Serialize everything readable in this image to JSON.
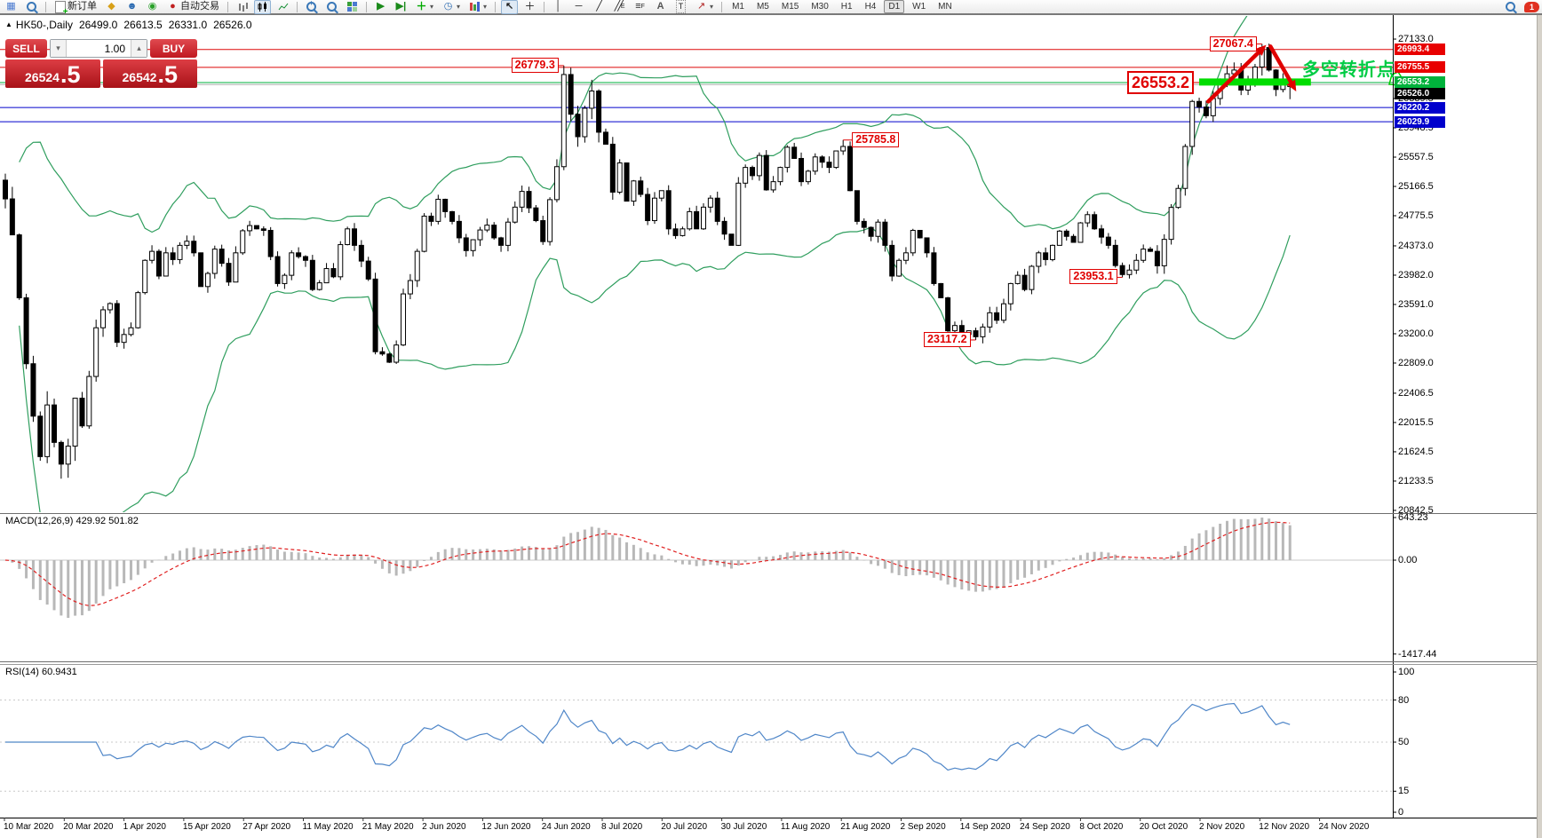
{
  "toolbar": {
    "items": [
      {
        "name": "new-chart",
        "icon": "chart-window"
      },
      {
        "name": "profiles",
        "icon": "chart-magnifier"
      },
      {
        "sep": true
      },
      {
        "name": "new-order",
        "icon": "doc-plus",
        "label": "新订单"
      },
      {
        "name": "metaeditor",
        "icon": "diamond"
      },
      {
        "name": "terminal",
        "icon": "person"
      },
      {
        "name": "signals",
        "icon": "signal"
      },
      {
        "name": "autotrading",
        "icon": "autotrade",
        "label": "自动交易"
      },
      {
        "sep": true
      },
      {
        "name": "bar-chart-mode",
        "icon": "bars"
      },
      {
        "name": "candle-chart-mode",
        "icon": "candles",
        "active": true
      },
      {
        "name": "line-chart-mode",
        "icon": "linechart"
      },
      {
        "sep": true
      },
      {
        "name": "zoom-in",
        "icon": "zoom-in"
      },
      {
        "name": "zoom-out",
        "icon": "zoom-out"
      },
      {
        "name": "tile-windows",
        "icon": "tiles"
      },
      {
        "sep": true
      },
      {
        "name": "auto-scroll",
        "icon": "scroll-right"
      },
      {
        "name": "chart-shift",
        "icon": "shift-right"
      },
      {
        "name": "add-indicator",
        "icon": "plus-chart",
        "dropdown": true
      },
      {
        "name": "periods-menu",
        "icon": "clock",
        "dropdown": true
      },
      {
        "name": "templates-menu",
        "icon": "swatches",
        "dropdown": true
      },
      {
        "sep": true
      },
      {
        "name": "cursor-tool",
        "icon": "cursor",
        "active": true
      },
      {
        "name": "crosshair-tool",
        "icon": "crosshair"
      },
      {
        "sep": true
      },
      {
        "name": "vertical-line-tool",
        "icon": "vline"
      },
      {
        "name": "horizontal-line-tool",
        "icon": "hline"
      },
      {
        "name": "trendline-tool",
        "icon": "tline"
      },
      {
        "name": "channel-tool",
        "icon": "channel"
      },
      {
        "name": "fibonacci-tool",
        "icon": "fibo"
      },
      {
        "name": "text-tool",
        "icon": "letter-a"
      },
      {
        "name": "text-label-tool",
        "icon": "letter-t"
      },
      {
        "name": "arrows-tool",
        "icon": "arrow-draw",
        "dropdown": true
      },
      {
        "sep": true
      }
    ],
    "timeframes": [
      "M1",
      "M5",
      "M15",
      "M30",
      "H1",
      "H4",
      "D1",
      "W1",
      "MN"
    ],
    "active_timeframe": "D1",
    "notification_count": "1"
  },
  "chart": {
    "symbol_period": "HK50-,Daily",
    "open": "26499.0",
    "high": "26613.5",
    "low": "26331.0",
    "close": "26526.0"
  },
  "trade": {
    "sell_label": "SELL",
    "buy_label": "BUY",
    "volume": "1.00",
    "sell_price_main": "26524",
    "sell_price_frac": ".5",
    "buy_price_main": "26542",
    "buy_price_frac": ".5"
  },
  "callout": {
    "text": "多空转折点"
  },
  "indicators": {
    "macd": {
      "label": "MACD(12,26,9) 429.92 501.82"
    },
    "rsi": {
      "label": "RSI(14) 60.9431"
    }
  },
  "price_axis": {
    "ticks": [
      {
        "label": "27133.0",
        "price": 27133.0
      },
      {
        "label": "26339.5",
        "price": 26339.5
      },
      {
        "label": "25948.5",
        "price": 25948.5
      },
      {
        "label": "25557.5",
        "price": 25557.5
      },
      {
        "label": "25166.5",
        "price": 25166.5
      },
      {
        "label": "24775.5",
        "price": 24775.5
      },
      {
        "label": "24373.0",
        "price": 24373.0
      },
      {
        "label": "23982.0",
        "price": 23982.0
      },
      {
        "label": "23591.0",
        "price": 23591.0
      },
      {
        "label": "23200.0",
        "price": 23200.0
      },
      {
        "label": "22809.0",
        "price": 22809.0
      },
      {
        "label": "22406.5",
        "price": 22406.5
      },
      {
        "label": "22015.5",
        "price": 22015.5
      },
      {
        "label": "21624.5",
        "price": 21624.5
      },
      {
        "label": "21233.5",
        "price": 21233.5
      },
      {
        "label": "20842.5",
        "price": 20842.5
      }
    ],
    "badges": [
      {
        "label": "26993.4",
        "price": 26993.4,
        "color": "#e80000"
      },
      {
        "label": "26755.5",
        "price": 26755.5,
        "color": "#e80000"
      },
      {
        "label": "26526.0",
        "price": 26526.0,
        "color": "#000000",
        "offset": 10
      },
      {
        "label": "26553.2",
        "price": 26553.2,
        "color": "#00b23c"
      },
      {
        "label": "26220.2",
        "price": 26220.2,
        "color": "#0000cc"
      },
      {
        "label": "26029.9",
        "price": 26029.9,
        "color": "#0000cc"
      }
    ]
  },
  "annotations": [
    {
      "label": "26779.3",
      "bar": 80,
      "price": 26779.3,
      "side": "left"
    },
    {
      "label": "27067.4",
      "bar": 180,
      "price": 27067.4,
      "side": "left"
    },
    {
      "label": "26553.2",
      "bar": 171,
      "price": 26553.2,
      "side": "left",
      "big": true
    },
    {
      "label": "25785.8",
      "bar": 120,
      "price": 25785.8,
      "side": "right"
    },
    {
      "label": "23953.1",
      "bar": 160,
      "price": 23953.1,
      "side": "left"
    },
    {
      "label": "23117.2",
      "bar": 139,
      "price": 23117.2,
      "side": "left"
    }
  ],
  "chart_data": {
    "type": "candlestick",
    "symbol": "HK50-",
    "timeframe": "Daily",
    "visible_range": {
      "start": "10 Mar 2020",
      "end": "27 Nov 2020"
    },
    "last_candle_ohlc": {
      "open": 26499.0,
      "high": 26613.5,
      "low": 26331.0,
      "close": 26526.0
    },
    "closes": [
      25000,
      24520,
      23680,
      22800,
      22100,
      21560,
      22250,
      21750,
      21460,
      21700,
      22340,
      21970,
      22630,
      23280,
      23520,
      23603,
      23085,
      23190,
      23280,
      23749,
      24180,
      24300,
      23970,
      24280,
      24190,
      24380,
      24435,
      24280,
      23830,
      24005,
      24330,
      24140,
      23890,
      24280,
      24575,
      24644,
      24600,
      24580,
      24230,
      23870,
      23980,
      24280,
      24230,
      24180,
      23790,
      23880,
      24070,
      23960,
      24390,
      24600,
      24380,
      24170,
      23930,
      22960,
      22930,
      22820,
      23050,
      23732,
      23910,
      24300,
      24770,
      24700,
      24995,
      24830,
      24700,
      24480,
      24310,
      24455,
      24585,
      24650,
      24480,
      24380,
      24690,
      24890,
      25100,
      24880,
      24710,
      24430,
      24990,
      25430,
      26660,
      26130,
      25830,
      26210,
      26440,
      25890,
      25730,
      25090,
      25480,
      24970,
      25240,
      25060,
      24710,
      25010,
      25110,
      24600,
      24510,
      24600,
      24830,
      24600,
      24890,
      25010,
      24700,
      24530,
      24380,
      25210,
      25420,
      25310,
      25580,
      25120,
      25230,
      25420,
      25690,
      25540,
      25230,
      25370,
      25560,
      25490,
      25420,
      25640,
      25700,
      25110,
      24700,
      24620,
      24500,
      24690,
      24380,
      23970,
      24180,
      24280,
      24580,
      24480,
      24280,
      23870,
      23680,
      23240,
      23310,
      23190,
      23240,
      23160,
      23290,
      23480,
      23380,
      23600,
      23870,
      23980,
      23790,
      24100,
      24280,
      24190,
      24380,
      24570,
      24500,
      24420,
      24680,
      24790,
      24600,
      24490,
      24380,
      24110,
      23990,
      24050,
      24180,
      24330,
      24300,
      24107,
      24460,
      24886,
      25140,
      25700,
      26301,
      26226,
      26110,
      26340,
      26530,
      26670,
      26720,
      26452,
      26562,
      26760,
      27020,
      26720,
      26460,
      26600,
      26526
    ],
    "key_extremes": [
      {
        "bar": 80,
        "high": 26779.3
      },
      {
        "bar": 120,
        "high": 25785.8
      },
      {
        "bar": 139,
        "low": 23117.2
      },
      {
        "bar": 160,
        "low": 23953.1
      },
      {
        "bar": 180,
        "high": 27067.4
      }
    ],
    "date_labels": [
      "10 Mar 2020",
      "20 Mar 2020",
      "1 Apr 2020",
      "15 Apr 2020",
      "27 Apr 2020",
      "11 May 2020",
      "21 May 2020",
      "2 Jun 2020",
      "12 Jun 2020",
      "24 Jun 2020",
      "8 Jul 2020",
      "20 Jul 2020",
      "30 Jul 2020",
      "11 Aug 2020",
      "21 Aug 2020",
      "2 Sep 2020",
      "14 Sep 2020",
      "24 Sep 2020",
      "8 Oct 2020",
      "20 Oct 2020",
      "2 Nov 2020",
      "12 Nov 2020",
      "24 Nov 2020"
    ],
    "overlays": {
      "bollinger_bands": {
        "period": 20,
        "deviation": 2,
        "color": "#2f9e5e"
      },
      "horizontal_levels": [
        {
          "price": 26993.4,
          "color": "#dd0808"
        },
        {
          "price": 26755.5,
          "color": "#dd0808"
        },
        {
          "price": 26553.2,
          "color": "#00b23c"
        },
        {
          "price": 26526.0,
          "color": "#b0b0b0"
        },
        {
          "price": 26220.2,
          "color": "#0000cc"
        },
        {
          "price": 26029.9,
          "color": "#0000cc"
        }
      ],
      "support_bar": {
        "from_bar": 171,
        "to_bar": 187,
        "price": 26560,
        "color": "#00dd00"
      },
      "trend_arrows": [
        {
          "dir": "up",
          "from": {
            "bar": 172.3,
            "price": 26300
          },
          "to": {
            "bar": 180.6,
            "price": 27055
          }
        },
        {
          "dir": "down",
          "from": {
            "bar": 181.2,
            "price": 27035
          },
          "to": {
            "bar": 184.9,
            "price": 26435
          }
        }
      ]
    },
    "indicators": {
      "macd": {
        "params": [
          12,
          26,
          9
        ],
        "current_macd": 429.92,
        "current_signal": 501.82,
        "axis": [
          {
            "label": "643.23",
            "v": 643.23
          },
          {
            "label": "0.00",
            "v": 0.0
          },
          {
            "label": "-1417.44",
            "v": -1417.44
          }
        ],
        "histogram_color": "#b8b8b8",
        "signal_color": "#e02020"
      },
      "rsi": {
        "params": [
          14
        ],
        "current": 60.9431,
        "levels": [
          80,
          50,
          15
        ],
        "axis": [
          {
            "label": "100",
            "v": 100
          },
          {
            "label": "80",
            "v": 80
          },
          {
            "label": "50",
            "v": 50
          },
          {
            "label": "15",
            "v": 15
          },
          {
            "label": "0",
            "v": 0
          }
        ],
        "line_color": "#4f86c8"
      }
    }
  }
}
